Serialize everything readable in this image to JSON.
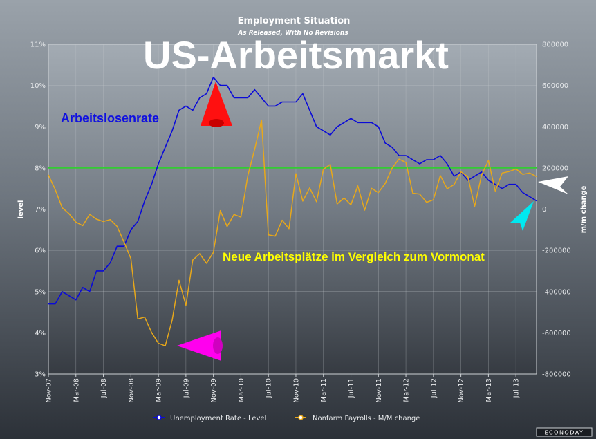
{
  "chart_data": {
    "type": "line",
    "title": "Employment Situation",
    "subtitle": "As Released, With No Revisions",
    "overlay_title": "US-Arbeitsmarkt",
    "ylabel_left": "level",
    "ylabel_right": "m/m change",
    "ylim_left": [
      3,
      11
    ],
    "ylim_right": [
      -800000,
      800000
    ],
    "yticks_left": [
      "3%",
      "4%",
      "5%",
      "6%",
      "7%",
      "8%",
      "9%",
      "10%",
      "11%"
    ],
    "yticks_right": [
      "-800000",
      "-600000",
      "-400000",
      "-200000",
      "0",
      "200000",
      "400000",
      "600000",
      "800000"
    ],
    "x_labels": [
      "Nov-07",
      "Mar-08",
      "Jul-08",
      "Nov-08",
      "Mar-09",
      "Jul-09",
      "Nov-09",
      "Mar-10",
      "Jul-10",
      "Nov-10",
      "Mar-11",
      "Jul-11",
      "Nov-11",
      "Mar-12",
      "Jul-12",
      "Nov-12",
      "Mar-13",
      "Jul-13"
    ],
    "x_start": "Nov-07",
    "x_end": "Oct-13",
    "grid": true,
    "legend_position": "bottom",
    "reference_line": {
      "axis": "left",
      "value": 8.0,
      "color": "#33cc33"
    },
    "series": [
      {
        "name": "Unemployment Rate - Level",
        "axis": "left",
        "color": "#0a0ad8",
        "values": [
          4.7,
          4.7,
          5.0,
          4.9,
          4.8,
          5.1,
          5.0,
          5.5,
          5.5,
          5.7,
          6.1,
          6.1,
          6.5,
          6.7,
          7.2,
          7.6,
          8.1,
          8.5,
          8.9,
          9.4,
          9.5,
          9.4,
          9.7,
          9.8,
          10.2,
          10.0,
          10.0,
          9.7,
          9.7,
          9.7,
          9.9,
          9.7,
          9.5,
          9.5,
          9.6,
          9.6,
          9.6,
          9.8,
          9.4,
          9.0,
          8.9,
          8.8,
          9.0,
          9.1,
          9.2,
          9.1,
          9.1,
          9.1,
          9.0,
          8.6,
          8.5,
          8.3,
          8.3,
          8.2,
          8.1,
          8.2,
          8.2,
          8.3,
          8.1,
          7.8,
          7.9,
          7.7,
          7.8,
          7.9,
          7.7,
          7.6,
          7.5,
          7.6,
          7.6,
          7.4,
          7.3,
          7.2
        ]
      },
      {
        "name": "Nonfarm Payrolls - M/M change",
        "axis": "right",
        "color": "#e8a81a",
        "values": [
          166000,
          95000,
          7000,
          -22000,
          -63000,
          -80000,
          -25000,
          -49000,
          -60000,
          -51000,
          -84000,
          -160000,
          -240000,
          -533000,
          -524000,
          -598000,
          -651000,
          -663000,
          -539000,
          -345000,
          -467000,
          -247000,
          -216000,
          -263000,
          -210000,
          -7000,
          -85000,
          -26000,
          -39000,
          162000,
          290000,
          432000,
          -125000,
          -131000,
          -54000,
          -95000,
          172000,
          39000,
          103000,
          36000,
          194000,
          217000,
          25000,
          54000,
          21000,
          113000,
          -5000,
          101000,
          80000,
          125000,
          200000,
          243000,
          226000,
          77000,
          73000,
          33000,
          45000,
          163000,
          99000,
          119000,
          181000,
          157000,
          14000,
          165000,
          236000,
          88000,
          175000,
          182000,
          195000,
          169000,
          175000,
          158000
        ]
      }
    ],
    "annotations": {
      "unemployment_label": "Arbeitslosenrate",
      "payrolls_label": "Neue Arbeitsplätze im Vergleich zum Vormonat"
    },
    "brand": "ECONODAY",
    "colors": {
      "annotation_blue": "#1010e0",
      "annotation_yellow": "#ffff00",
      "arrow_red": "#ff1010",
      "arrow_magenta": "#ff00ee",
      "arrow_white": "#ffffff",
      "arrow_cyan": "#00e8f0"
    }
  }
}
